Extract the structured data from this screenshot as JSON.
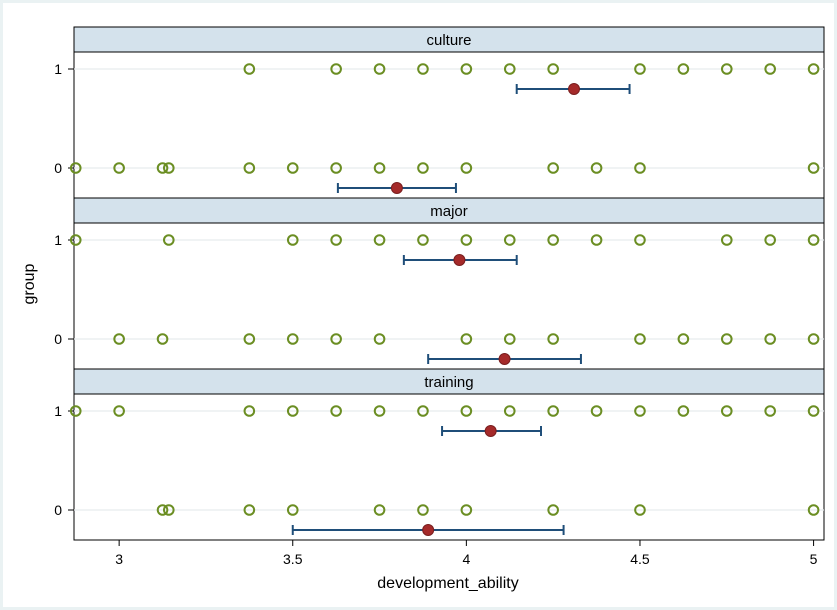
{
  "chart_data": {
    "type": "scatter",
    "xlabel": "development_ability",
    "ylabel": "group",
    "xlim": [
      2.87,
      5.03
    ],
    "x_ticks": [
      "3",
      "3.5",
      "4",
      "4.5",
      "5"
    ],
    "y_ticks": [
      "0",
      "1"
    ],
    "colors": {
      "points": "#6b8e23",
      "mean": "#a52a2a",
      "ci": "#1f4e79",
      "strip": "#d4e2ec"
    },
    "panels": [
      {
        "title": "culture",
        "groups": [
          {
            "group": "1",
            "points": [
              3.375,
              3.625,
              3.75,
              3.875,
              4.0,
              4.125,
              4.25,
              4.5,
              4.625,
              4.75,
              4.875,
              5.0
            ],
            "mean": 4.31,
            "ci": [
              4.145,
              4.47
            ]
          },
          {
            "group": "0",
            "points": [
              2.875,
              3.0,
              3.125,
              3.143,
              3.375,
              3.5,
              3.625,
              3.75,
              3.875,
              4.0,
              4.25,
              4.375,
              4.5,
              5.0
            ],
            "mean": 3.8,
            "ci": [
              3.63,
              3.97
            ]
          }
        ]
      },
      {
        "title": "major",
        "groups": [
          {
            "group": "1",
            "points": [
              2.875,
              3.143,
              3.5,
              3.625,
              3.75,
              3.875,
              4.0,
              4.125,
              4.25,
              4.375,
              4.5,
              4.75,
              4.875,
              5.0
            ],
            "mean": 3.98,
            "ci": [
              3.82,
              4.145
            ]
          },
          {
            "group": "0",
            "points": [
              3.0,
              3.125,
              3.375,
              3.5,
              3.625,
              3.75,
              4.0,
              4.125,
              4.25,
              4.5,
              4.625,
              4.75,
              4.875,
              5.0
            ],
            "mean": 4.11,
            "ci": [
              3.89,
              4.33
            ]
          }
        ]
      },
      {
        "title": "training",
        "groups": [
          {
            "group": "1",
            "points": [
              2.875,
              3.0,
              3.375,
              3.5,
              3.625,
              3.75,
              3.875,
              4.0,
              4.125,
              4.25,
              4.375,
              4.5,
              4.625,
              4.75,
              4.875,
              5.0
            ],
            "mean": 4.07,
            "ci": [
              3.93,
              4.215
            ]
          },
          {
            "group": "0",
            "points": [
              3.125,
              3.143,
              3.375,
              3.5,
              3.75,
              3.875,
              4.0,
              4.25,
              4.5,
              5.0
            ],
            "mean": 3.89,
            "ci": [
              3.5,
              4.28
            ]
          }
        ]
      }
    ]
  }
}
